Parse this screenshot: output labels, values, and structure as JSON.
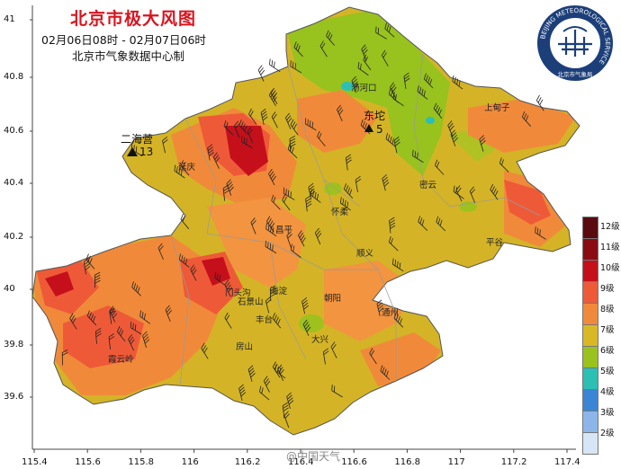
{
  "title": "北京市极大风图",
  "subtitle": "02月06日08时  -  02月07日06时",
  "organization": "北京市气象数据中心制",
  "logo": {
    "ring_text": "BEIJING METEOROLOGICAL SERVICE",
    "inner_text": "北京市气象局",
    "icon": "beijing-met-service-seal"
  },
  "axes": {
    "y_ticks": [
      "41",
      "40.8",
      "40.6",
      "40.4",
      "40.2",
      "40",
      "39.8",
      "39.6"
    ],
    "x_ticks": [
      "115.4",
      "115.6",
      "115.8",
      "116",
      "116.2",
      "116.4",
      "116.6",
      "116.8",
      "117",
      "117.2",
      "117.4"
    ]
  },
  "legend": {
    "levels": [
      {
        "label": "12级",
        "color": "#5a0b10"
      },
      {
        "label": "11级",
        "color": "#8a0d14"
      },
      {
        "label": "10级",
        "color": "#c5101c"
      },
      {
        "label": "9级",
        "color": "#ee5a38"
      },
      {
        "label": "8级",
        "color": "#f08a3a"
      },
      {
        "label": "7级",
        "color": "#d9b824"
      },
      {
        "label": "6级",
        "color": "#9ac21c"
      },
      {
        "label": "5级",
        "color": "#2cbfb4"
      },
      {
        "label": "4级",
        "color": "#3b85d6"
      },
      {
        "label": "3级",
        "color": "#8cb6ea"
      },
      {
        "label": "2级",
        "color": "#d6e6f7"
      }
    ]
  },
  "places": [
    "汤河口",
    "上甸子",
    "二海营",
    "延庆",
    "密云",
    "怀柔",
    "平谷",
    "昌平",
    "顺义",
    "海淀",
    "朝阳",
    "石景山",
    "丰台",
    "通州",
    "大兴",
    "房山",
    "门头沟",
    "霞云岭"
  ],
  "stations": [
    {
      "name": "东坨",
      "value": "5",
      "icon": "station-triangle-icon"
    },
    {
      "name": "二海营",
      "value": "13",
      "icon": "station-triangle-icon"
    }
  ],
  "watermark": "@中国天气"
}
